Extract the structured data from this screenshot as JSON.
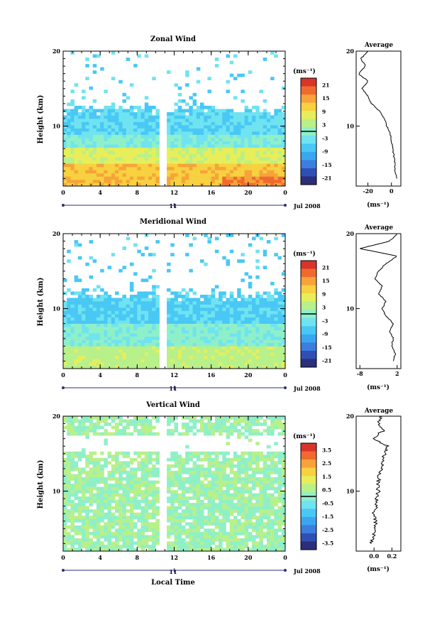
{
  "date_label": "Jul 2008",
  "day_label": "11",
  "xlabel_bottom": "Local Time",
  "colorbar_units": "(ms⁻¹)",
  "avg_units": "(ms⁻¹)",
  "colors": {
    "palette": [
      "#2b2e7a",
      "#2f4fb5",
      "#3b7ee0",
      "#3aa6ef",
      "#49c8f5",
      "#6fe3f0",
      "#8ff0c8",
      "#b8f08a",
      "#e7ee5a",
      "#f7d13f",
      "#f7a33a",
      "#f06a2e",
      "#d8342a"
    ]
  },
  "chart_data": [
    {
      "type": "heatmap",
      "title": "Zonal Wind",
      "xlabel": "",
      "ylabel": "Height (km)",
      "x_ticks": [
        "0",
        "4",
        "8",
        "12",
        "16",
        "20",
        "0"
      ],
      "y_ticks": [
        "20",
        "10"
      ],
      "xlim": [
        0,
        24
      ],
      "ylim": [
        2,
        20
      ],
      "data_gap_hours": [
        10.6,
        11.0
      ],
      "colorbar_ticks": [
        "21",
        "15",
        "9",
        "3",
        "-3",
        "-9",
        "-15",
        "-21"
      ],
      "colorbar_range": [
        -24,
        24
      ],
      "avg_title": "Average",
      "avg_xticks": [
        "-20",
        "0"
      ],
      "avg_xlim": [
        -30,
        8
      ],
      "avg_profile": {
        "height": [
          3,
          4,
          5,
          6,
          7,
          8,
          9,
          10,
          11,
          12,
          13,
          14,
          15,
          16,
          17,
          18,
          19,
          20
        ],
        "value": [
          5,
          3,
          3,
          2,
          1,
          0,
          -1,
          -4,
          -6,
          -10,
          -17,
          -20,
          -25,
          -20,
          -28,
          -22,
          -26,
          -20
        ]
      }
    },
    {
      "type": "heatmap",
      "title": "Meridional Wind",
      "xlabel": "",
      "ylabel": "Height (km)",
      "x_ticks": [
        "0",
        "4",
        "8",
        "12",
        "16",
        "20",
        "0"
      ],
      "y_ticks": [
        "20",
        "10"
      ],
      "xlim": [
        0,
        24
      ],
      "ylim": [
        2,
        20
      ],
      "data_gap_hours": [
        10.6,
        11.0
      ],
      "colorbar_ticks": [
        "21",
        "15",
        "9",
        "3",
        "-3",
        "-9",
        "-15",
        "-21"
      ],
      "colorbar_range": [
        -24,
        24
      ],
      "avg_title": "Average",
      "avg_xticks": [
        "-8",
        "2"
      ],
      "avg_xlim": [
        -9,
        3
      ],
      "avg_profile": {
        "height": [
          3,
          4,
          5,
          6,
          7,
          8,
          9,
          10,
          11,
          12,
          13,
          14,
          15,
          16,
          17,
          18,
          19,
          20
        ],
        "value": [
          1,
          1.5,
          0.5,
          1,
          0,
          1,
          -1,
          -2,
          -1,
          -3,
          -2,
          -4,
          -3,
          -1,
          2,
          -8,
          0,
          2
        ]
      }
    },
    {
      "type": "heatmap",
      "title": "Vertical Wind",
      "xlabel": "Local Time",
      "ylabel": "Height (km)",
      "x_ticks": [
        "0",
        "4",
        "8",
        "12",
        "16",
        "20",
        "0"
      ],
      "y_ticks": [
        "20",
        "10"
      ],
      "xlim": [
        0,
        24
      ],
      "ylim": [
        2,
        20
      ],
      "data_gap_hours": [
        10.6,
        11.0
      ],
      "colorbar_ticks": [
        "3.5",
        "2.5",
        "1.5",
        "0.5",
        "-0.5",
        "-1.5",
        "-2.5",
        "-3.5"
      ],
      "colorbar_range": [
        -4,
        4
      ],
      "avg_title": "Average",
      "avg_xticks": [
        "0.0",
        "0.2"
      ],
      "avg_xlim": [
        -0.2,
        0.3
      ],
      "avg_profile": {
        "height": [
          3,
          4,
          5,
          6,
          7,
          8,
          9,
          10,
          11,
          12,
          13,
          14,
          15,
          16,
          17,
          18,
          19,
          20
        ],
        "value": [
          -0.05,
          0.0,
          0.01,
          0.02,
          0.0,
          0.03,
          0.02,
          0.05,
          0.04,
          0.06,
          0.08,
          0.1,
          0.12,
          0.15,
          -0.02,
          0.1,
          0.05,
          0.08
        ]
      }
    }
  ]
}
